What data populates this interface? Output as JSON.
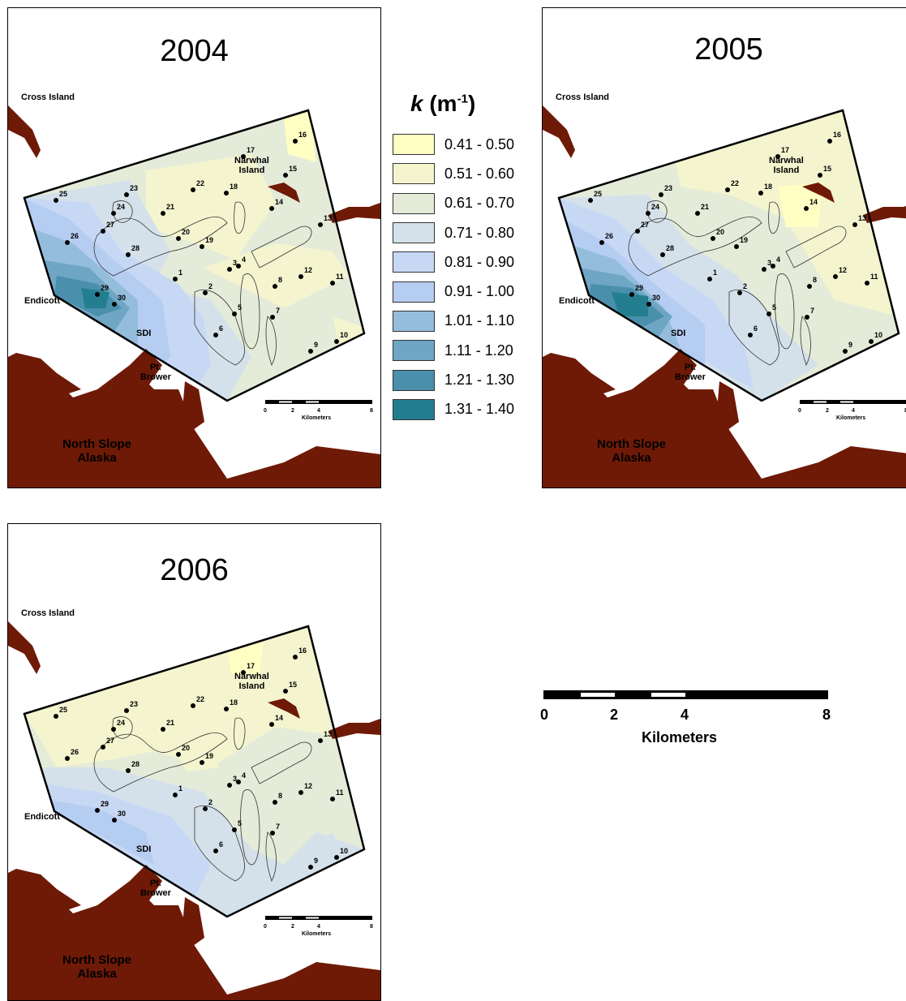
{
  "maps": [
    {
      "year": "2004"
    },
    {
      "year": "2005"
    },
    {
      "year": "2006"
    }
  ],
  "place_labels": {
    "cross_island": "Cross Island",
    "narwhal_island": "Narwhal\nIsland",
    "endicott": "Endicott",
    "sdi": "SDI",
    "pt_brower": "Pt.\nBrower",
    "north_slope": "North Slope\nAlaska"
  },
  "stations": [
    "1",
    "2",
    "3",
    "4",
    "5",
    "6",
    "7",
    "8",
    "9",
    "10",
    "11",
    "12",
    "13",
    "14",
    "15",
    "16",
    "17",
    "18",
    "19",
    "20",
    "21",
    "22",
    "23",
    "24",
    "25",
    "26",
    "27",
    "28",
    "29",
    "30"
  ],
  "legend": {
    "title_symbol": "k",
    "title_unit": "(m",
    "title_exp": "-1",
    "title_close": ")",
    "classes": [
      {
        "label": "0.41 - 0.50",
        "color": "#ffffc4"
      },
      {
        "label": "0.51 - 0.60",
        "color": "#f4f5cf"
      },
      {
        "label": "0.61 - 0.70",
        "color": "#e5ebd9"
      },
      {
        "label": "0.71 - 0.80",
        "color": "#d5e1ea"
      },
      {
        "label": "0.81 - 0.90",
        "color": "#c7d8f4"
      },
      {
        "label": "0.91 - 1.00",
        "color": "#b6cdf2"
      },
      {
        "label": "1.01 - 1.10",
        "color": "#94bddb"
      },
      {
        "label": "1.11 - 1.20",
        "color": "#6fa6c4"
      },
      {
        "label": "1.21 - 1.30",
        "color": "#4a8fab"
      },
      {
        "label": "1.31 - 1.40",
        "color": "#237f8f"
      }
    ]
  },
  "scale_bar": {
    "ticks": [
      "0",
      "2",
      "4",
      "8"
    ],
    "unit": "Kilometers"
  },
  "colors": {
    "land": "#6e1a07",
    "outline": "#000000"
  }
}
